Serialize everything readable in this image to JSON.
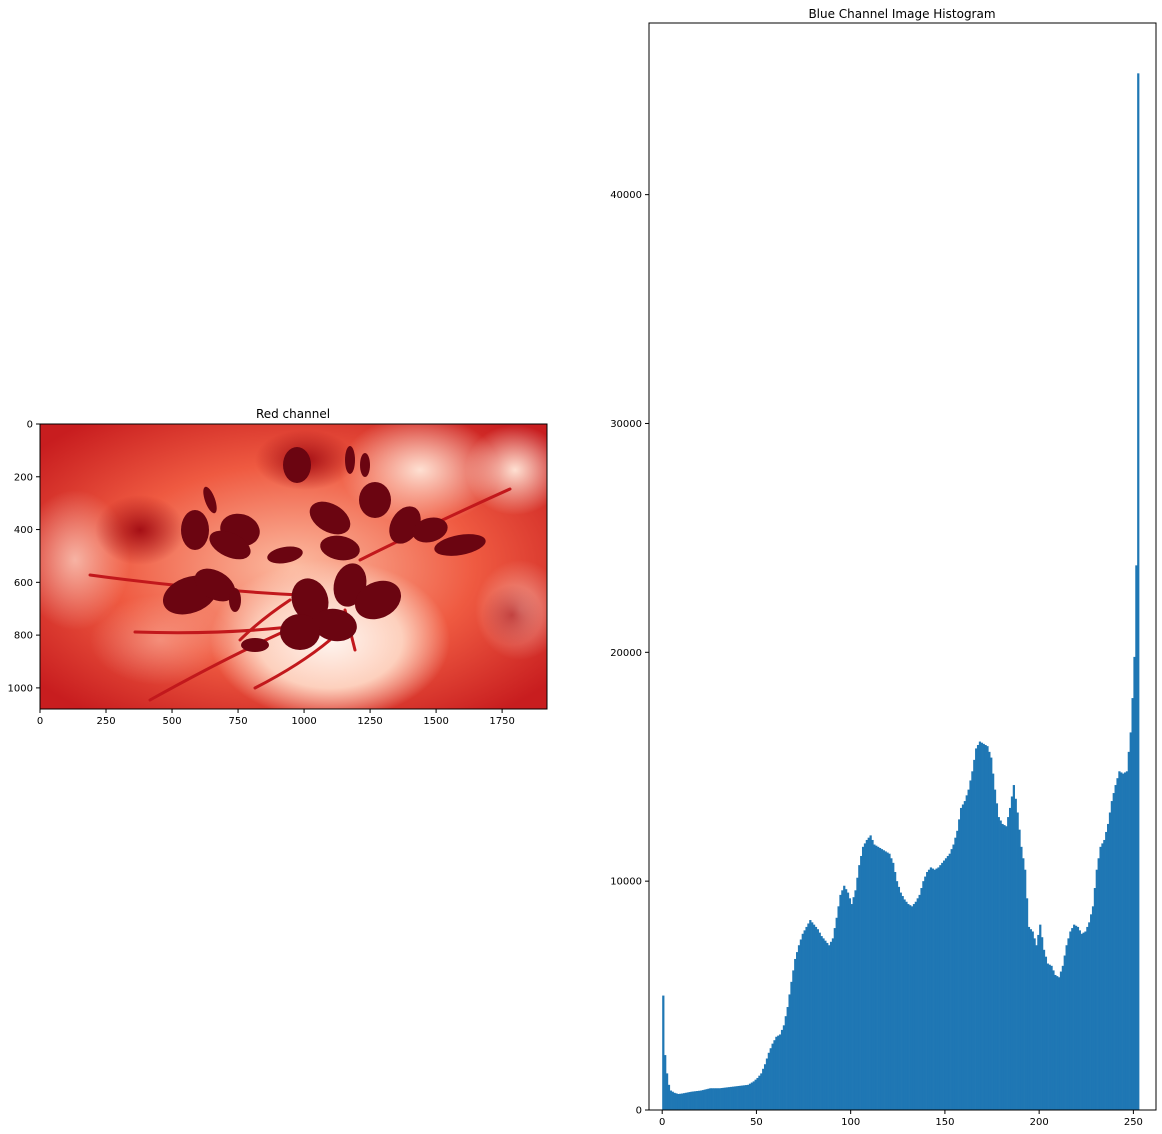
{
  "chart_data": [
    {
      "type": "image",
      "title": "Red channel",
      "colormap": "Reds",
      "xlim": [
        0,
        1920
      ],
      "ylim": [
        1080,
        0
      ],
      "x_ticks": [
        0,
        250,
        500,
        750,
        1000,
        1250,
        1500,
        1750
      ],
      "y_ticks": [
        0,
        200,
        400,
        600,
        800,
        1000
      ],
      "colors": {
        "light": "#fff5f0",
        "mid": "#ef3b2c",
        "dark": "#67000d"
      }
    },
    {
      "type": "bar",
      "title": "Blue Channel Image Histogram",
      "xlim": [
        -7,
        262
      ],
      "ylim": [
        0,
        47500
      ],
      "x_ticks": [
        0,
        50,
        100,
        150,
        200,
        250
      ],
      "y_ticks": [
        0,
        10000,
        20000,
        30000,
        40000
      ],
      "bar_color": "#1f77b4",
      "bin_width": 1,
      "keypoints": [
        [
          0,
          5000
        ],
        [
          1,
          2400
        ],
        [
          2,
          1600
        ],
        [
          3,
          1100
        ],
        [
          4,
          850
        ],
        [
          6,
          750
        ],
        [
          8,
          700
        ],
        [
          10,
          720
        ],
        [
          15,
          800
        ],
        [
          20,
          850
        ],
        [
          25,
          950
        ],
        [
          30,
          950
        ],
        [
          35,
          1000
        ],
        [
          40,
          1050
        ],
        [
          45,
          1100
        ],
        [
          48,
          1250
        ],
        [
          50,
          1400
        ],
        [
          52,
          1600
        ],
        [
          54,
          2000
        ],
        [
          56,
          2500
        ],
        [
          58,
          2900
        ],
        [
          60,
          3200
        ],
        [
          62,
          3300
        ],
        [
          64,
          3700
        ],
        [
          66,
          4500
        ],
        [
          68,
          5600
        ],
        [
          70,
          6600
        ],
        [
          72,
          7200
        ],
        [
          74,
          7700
        ],
        [
          76,
          8000
        ],
        [
          78,
          8300
        ],
        [
          80,
          8100
        ],
        [
          82,
          7900
        ],
        [
          84,
          7600
        ],
        [
          86,
          7400
        ],
        [
          88,
          7200
        ],
        [
          90,
          7500
        ],
        [
          92,
          8400
        ],
        [
          94,
          9400
        ],
        [
          96,
          9800
        ],
        [
          98,
          9500
        ],
        [
          100,
          9000
        ],
        [
          102,
          9600
        ],
        [
          104,
          10700
        ],
        [
          106,
          11500
        ],
        [
          108,
          11800
        ],
        [
          110,
          12000
        ],
        [
          112,
          11600
        ],
        [
          114,
          11500
        ],
        [
          116,
          11400
        ],
        [
          118,
          11300
        ],
        [
          120,
          11200
        ],
        [
          122,
          10800
        ],
        [
          124,
          10000
        ],
        [
          126,
          9500
        ],
        [
          128,
          9200
        ],
        [
          130,
          9000
        ],
        [
          132,
          8900
        ],
        [
          134,
          9100
        ],
        [
          136,
          9400
        ],
        [
          138,
          10000
        ],
        [
          140,
          10400
        ],
        [
          142,
          10600
        ],
        [
          144,
          10500
        ],
        [
          146,
          10600
        ],
        [
          148,
          10800
        ],
        [
          150,
          11000
        ],
        [
          152,
          11200
        ],
        [
          154,
          11600
        ],
        [
          156,
          12200
        ],
        [
          158,
          13200
        ],
        [
          160,
          13500
        ],
        [
          162,
          14000
        ],
        [
          164,
          14800
        ],
        [
          166,
          15800
        ],
        [
          168,
          16100
        ],
        [
          170,
          16000
        ],
        [
          172,
          15900
        ],
        [
          174,
          15400
        ],
        [
          176,
          14000
        ],
        [
          178,
          12800
        ],
        [
          180,
          12500
        ],
        [
          182,
          12400
        ],
        [
          184,
          13200
        ],
        [
          186,
          14200
        ],
        [
          188,
          13000
        ],
        [
          190,
          11500
        ],
        [
          192,
          10500
        ],
        [
          194,
          8000
        ],
        [
          196,
          7800
        ],
        [
          198,
          7200
        ],
        [
          200,
          8100
        ],
        [
          202,
          7000
        ],
        [
          204,
          6400
        ],
        [
          206,
          6300
        ],
        [
          208,
          5900
        ],
        [
          210,
          5800
        ],
        [
          212,
          6300
        ],
        [
          214,
          7200
        ],
        [
          216,
          7800
        ],
        [
          218,
          8100
        ],
        [
          220,
          8000
        ],
        [
          222,
          7700
        ],
        [
          224,
          7800
        ],
        [
          226,
          8200
        ],
        [
          228,
          8900
        ],
        [
          230,
          10500
        ],
        [
          232,
          11500
        ],
        [
          234,
          11800
        ],
        [
          236,
          12500
        ],
        [
          238,
          13500
        ],
        [
          240,
          14200
        ],
        [
          242,
          14800
        ],
        [
          244,
          14700
        ],
        [
          246,
          14800
        ],
        [
          248,
          16500
        ],
        [
          249,
          18000
        ],
        [
          250,
          19800
        ],
        [
          251,
          23800
        ],
        [
          252,
          45300
        ]
      ]
    }
  ]
}
